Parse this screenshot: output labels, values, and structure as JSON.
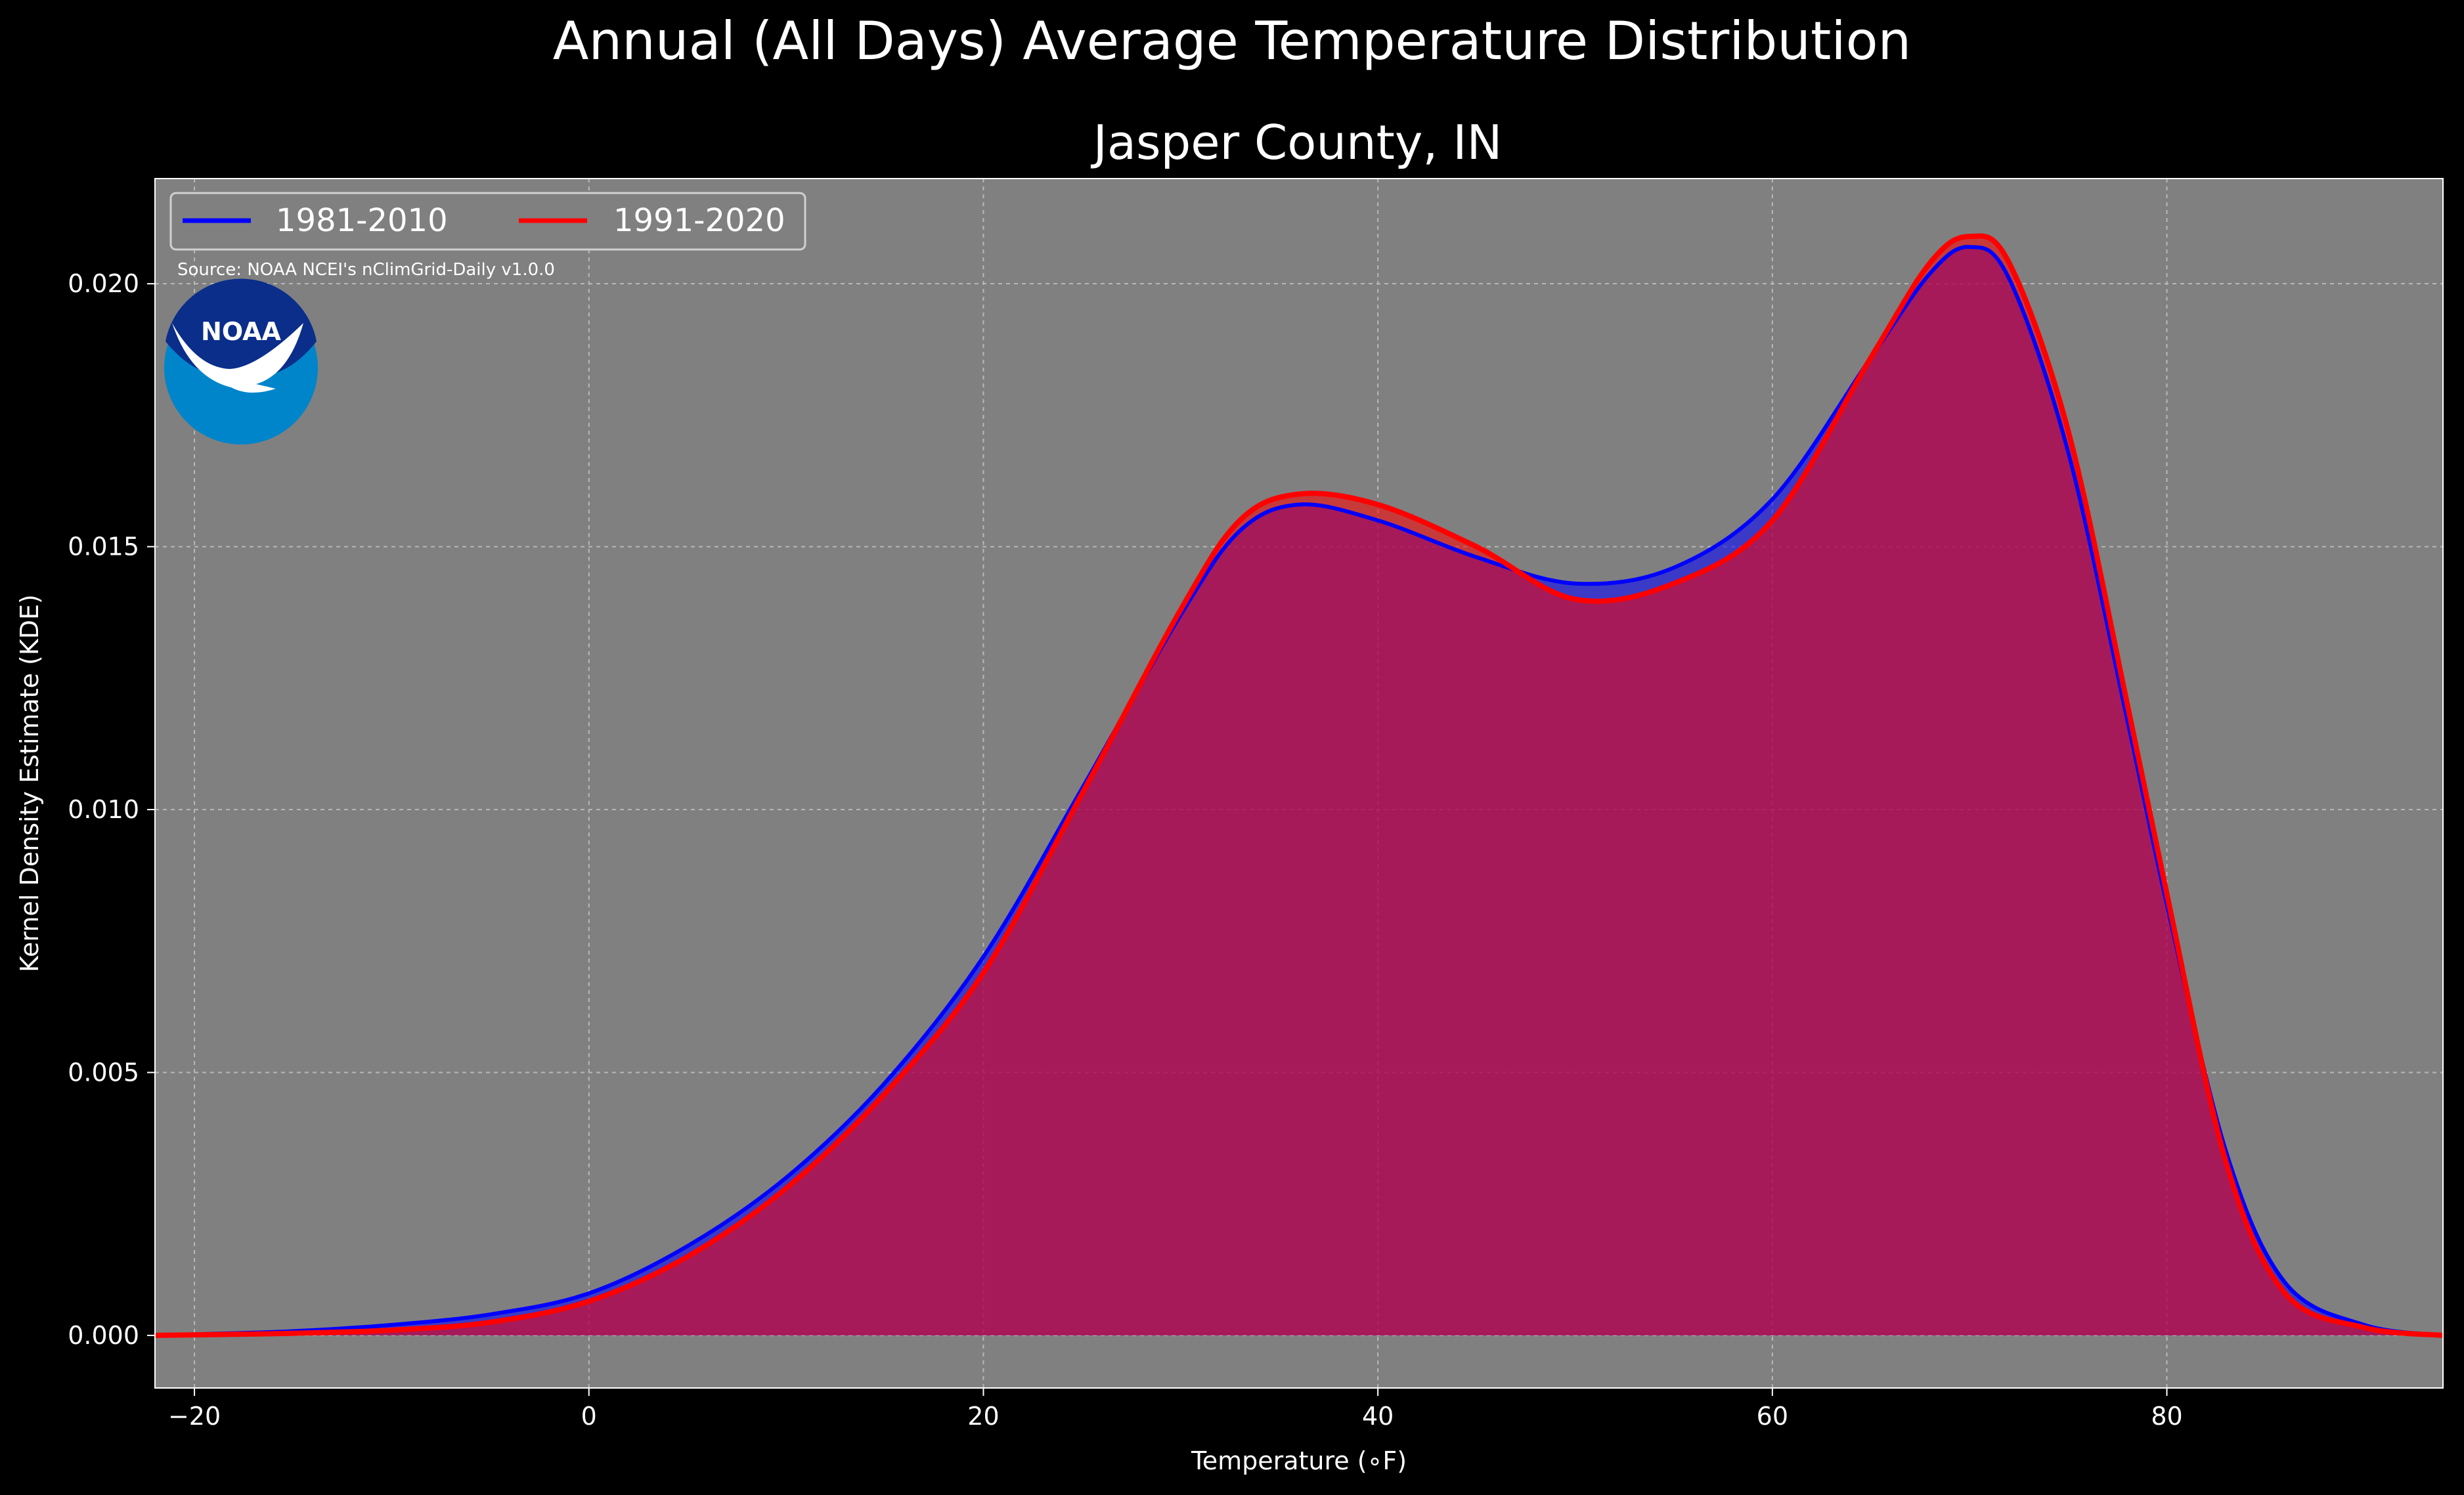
{
  "chart_data": {
    "type": "area",
    "suptitle": "Annual (All Days) Average Temperature Distribution",
    "title": "Jasper County, IN",
    "xlabel": "Temperature (∘F)",
    "ylabel": "Kernel Density Estimate (KDE)",
    "xlim": [
      -22,
      94
    ],
    "ylim": [
      -0.001,
      0.022
    ],
    "xticks": [
      -20,
      0,
      20,
      40,
      60,
      80
    ],
    "xtick_labels": [
      "−20",
      "0",
      "20",
      "40",
      "60",
      "80"
    ],
    "yticks": [
      0.0,
      0.005,
      0.01,
      0.015,
      0.02
    ],
    "ytick_labels": [
      "0.000",
      "0.005",
      "0.010",
      "0.015",
      "0.020"
    ],
    "grid": true,
    "legend_placement": "top-left",
    "source_note": "Source: NOAA NCEI's nClimGrid-Daily v1.0.0",
    "logo_text": "NOAA",
    "colors": {
      "figure_bg": "#000000",
      "axes_bg": "#808080",
      "fill_overlap": "#9E1F5C"
    },
    "x": [
      -22,
      -20,
      -15,
      -10,
      -5,
      0,
      5,
      10,
      15,
      20,
      25,
      30,
      33,
      36,
      40,
      45,
      50,
      55,
      60,
      65,
      68,
      70,
      72,
      75,
      78,
      80,
      83,
      86,
      90,
      94
    ],
    "series": [
      {
        "name": "1981-2010",
        "color": "#0000FF",
        "values": [
          0.0,
          2e-05,
          8e-05,
          0.0002,
          0.0004,
          0.0008,
          0.0017,
          0.003,
          0.0048,
          0.0072,
          0.0104,
          0.0137,
          0.0153,
          0.0158,
          0.0155,
          0.0148,
          0.0143,
          0.0146,
          0.0159,
          0.0186,
          0.0202,
          0.0207,
          0.0201,
          0.0168,
          0.0117,
          0.0082,
          0.0035,
          0.001,
          0.0002,
          0.0
        ]
      },
      {
        "name": "1991-2020",
        "color": "#FF0000",
        "values": [
          0.0,
          1e-05,
          4e-05,
          0.0001,
          0.00025,
          0.00065,
          0.0015,
          0.0028,
          0.0046,
          0.0069,
          0.0103,
          0.0138,
          0.0155,
          0.016,
          0.0158,
          0.015,
          0.014,
          0.0143,
          0.0155,
          0.0186,
          0.0204,
          0.0209,
          0.0204,
          0.0172,
          0.012,
          0.0084,
          0.0033,
          0.0008,
          0.00015,
          0.0
        ]
      }
    ]
  }
}
